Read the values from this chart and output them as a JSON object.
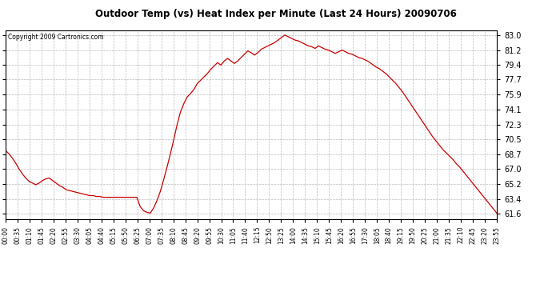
{
  "title": "Outdoor Temp (vs) Heat Index per Minute (Last 24 Hours) 20090706",
  "copyright": "Copyright 2009 Cartronics.com",
  "line_color": "#cc0000",
  "background_color": "#ffffff",
  "grid_color": "#aaaaaa",
  "yticks": [
    61.6,
    63.4,
    65.2,
    67.0,
    68.7,
    70.5,
    72.3,
    74.1,
    75.9,
    77.7,
    79.4,
    81.2,
    83.0
  ],
  "ylim": [
    61.0,
    83.6
  ],
  "xtick_labels": [
    "00:00",
    "00:35",
    "01:10",
    "01:45",
    "02:20",
    "02:55",
    "03:30",
    "04:05",
    "04:40",
    "05:15",
    "05:50",
    "06:25",
    "07:00",
    "07:35",
    "08:10",
    "08:45",
    "09:20",
    "09:55",
    "10:30",
    "11:05",
    "11:40",
    "12:15",
    "12:50",
    "13:25",
    "14:00",
    "14:35",
    "15:10",
    "15:45",
    "16:20",
    "16:55",
    "17:30",
    "18:05",
    "18:40",
    "19:15",
    "19:50",
    "20:25",
    "21:00",
    "21:35",
    "22:10",
    "22:45",
    "23:20",
    "23:55"
  ],
  "data_y": [
    69.2,
    68.8,
    68.3,
    67.7,
    67.0,
    66.4,
    65.9,
    65.5,
    65.3,
    65.1,
    65.3,
    65.6,
    65.8,
    65.9,
    65.6,
    65.3,
    65.0,
    64.8,
    64.5,
    64.4,
    64.3,
    64.2,
    64.1,
    64.0,
    63.9,
    63.8,
    63.8,
    63.7,
    63.7,
    63.6,
    63.6,
    63.6,
    63.6,
    63.6,
    63.6,
    63.6,
    63.6,
    63.6,
    63.6,
    63.6,
    62.5,
    62.0,
    61.8,
    61.7,
    62.3,
    63.2,
    64.3,
    65.7,
    67.2,
    68.8,
    70.5,
    72.3,
    73.8,
    74.8,
    75.6,
    76.0,
    76.5,
    77.2,
    77.6,
    78.0,
    78.4,
    78.9,
    79.3,
    79.7,
    79.4,
    79.9,
    80.2,
    79.9,
    79.6,
    79.9,
    80.3,
    80.7,
    81.1,
    80.9,
    80.6,
    80.9,
    81.3,
    81.5,
    81.7,
    81.9,
    82.1,
    82.4,
    82.7,
    83.0,
    82.8,
    82.6,
    82.4,
    82.3,
    82.1,
    81.9,
    81.7,
    81.6,
    81.4,
    81.7,
    81.5,
    81.3,
    81.2,
    81.0,
    80.8,
    81.0,
    81.2,
    81.0,
    80.8,
    80.7,
    80.5,
    80.3,
    80.2,
    80.0,
    79.8,
    79.5,
    79.2,
    79.0,
    78.7,
    78.4,
    78.0,
    77.6,
    77.2,
    76.7,
    76.2,
    75.6,
    75.0,
    74.4,
    73.8,
    73.2,
    72.6,
    72.0,
    71.4,
    70.8,
    70.3,
    69.8,
    69.3,
    68.9,
    68.5,
    68.1,
    67.6,
    67.2,
    66.7,
    66.2,
    65.7,
    65.2,
    64.7,
    64.2,
    63.7,
    63.2,
    62.7,
    62.2,
    61.7
  ]
}
